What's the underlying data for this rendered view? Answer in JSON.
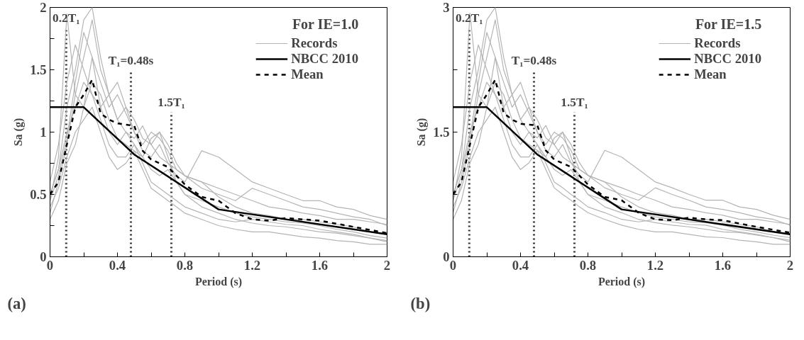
{
  "chart_data": [
    {
      "type": "line",
      "title": "For IE=1.0",
      "xlabel": "Period (s)",
      "ylabel": "Sa (g)",
      "legend": "top right",
      "grid": false,
      "xlim": [
        0,
        2
      ],
      "xticks": [
        0,
        {
          "value": 0.2,
          "label": null
        },
        0.4,
        {
          "value": 0.6,
          "label": null
        },
        0.8,
        {
          "value": 1.0,
          "label": null
        },
        1.2,
        {
          "value": 1.4,
          "label": null
        },
        1.6,
        {
          "value": 1.8,
          "label": null
        },
        2
      ],
      "ylim": [
        0,
        2
      ],
      "yticks": [
        0,
        {
          "value": 0.25,
          "label": null
        },
        0.5,
        {
          "value": 0.75,
          "label": null
        },
        1,
        {
          "value": 1.25,
          "label": null
        },
        1.5,
        {
          "value": 1.75,
          "label": null
        },
        2
      ],
      "x": [
        0,
        0.05,
        0.1,
        0.15,
        0.2,
        0.25,
        0.3,
        0.35,
        0.4,
        0.45,
        0.5,
        0.55,
        0.6,
        0.65,
        0.7,
        0.75,
        0.8,
        0.9,
        1.0,
        1.1,
        1.2,
        1.3,
        1.4,
        1.5,
        1.6,
        1.7,
        1.8,
        1.9,
        2.0
      ],
      "series": [
        {
          "name": "Records",
          "color": "#b4b4b4",
          "line_style": "solid",
          "values": [
            0.45,
            0.8,
            1.95,
            1.3,
            1.2,
            1.6,
            1.2,
            1.0,
            0.9,
            1.0,
            0.9,
            0.8,
            0.7,
            0.65,
            0.7,
            0.6,
            0.5,
            0.45,
            0.4,
            0.35,
            0.32,
            0.3,
            0.28,
            0.27,
            0.25,
            0.22,
            0.2,
            0.17,
            0.15
          ]
        },
        {
          "color": "#b4b4b4",
          "line_style": "solid",
          "values": [
            0.5,
            0.7,
            1.2,
            1.5,
            1.9,
            2.0,
            1.6,
            1.3,
            1.1,
            1.2,
            1.0,
            0.85,
            0.8,
            0.9,
            0.75,
            0.65,
            0.6,
            0.85,
            0.8,
            0.7,
            0.6,
            0.55,
            0.5,
            0.45,
            0.45,
            0.4,
            0.38,
            0.33,
            0.3
          ]
        },
        {
          "color": "#b4b4b4",
          "line_style": "solid",
          "values": [
            0.35,
            0.6,
            0.9,
            1.3,
            1.6,
            1.9,
            1.5,
            1.3,
            1.4,
            1.2,
            1.1,
            0.95,
            0.9,
            1.0,
            0.9,
            0.75,
            0.65,
            0.55,
            0.5,
            0.45,
            0.55,
            0.5,
            0.45,
            0.4,
            0.38,
            0.35,
            0.32,
            0.3,
            0.25
          ]
        },
        {
          "color": "#b4b4b4",
          "line_style": "solid",
          "values": [
            0.5,
            0.7,
            1.0,
            1.2,
            1.4,
            1.3,
            1.1,
            0.9,
            0.8,
            0.8,
            0.9,
            0.75,
            0.6,
            0.55,
            0.5,
            0.45,
            0.4,
            0.35,
            0.3,
            0.28,
            0.3,
            0.28,
            0.26,
            0.25,
            0.22,
            0.2,
            0.18,
            0.15,
            0.12
          ]
        },
        {
          "color": "#b4b4b4",
          "line_style": "solid",
          "values": [
            0.4,
            0.55,
            0.8,
            1.0,
            1.1,
            1.2,
            1.0,
            0.8,
            0.7,
            0.75,
            0.85,
            0.7,
            0.55,
            0.5,
            0.45,
            0.4,
            0.35,
            0.3,
            0.25,
            0.22,
            0.2,
            0.2,
            0.18,
            0.16,
            0.15,
            0.13,
            0.12,
            0.1,
            0.1
          ]
        },
        {
          "color": "#b4b4b4",
          "line_style": "solid",
          "values": [
            0.6,
            0.9,
            1.4,
            1.7,
            1.5,
            1.3,
            1.2,
            1.3,
            1.1,
            1.0,
            0.95,
            1.05,
            0.9,
            0.8,
            0.75,
            0.7,
            0.65,
            0.6,
            0.55,
            0.5,
            0.45,
            0.4,
            0.38,
            0.35,
            0.33,
            0.3,
            0.3,
            0.28,
            0.26
          ]
        },
        {
          "color": "#b4b4b4",
          "line_style": "solid",
          "values": [
            0.3,
            0.45,
            0.75,
            0.9,
            1.2,
            1.4,
            1.3,
            1.1,
            0.95,
            0.9,
            0.85,
            0.8,
            0.95,
            1.0,
            0.8,
            0.6,
            0.5,
            0.4,
            0.35,
            0.3,
            0.27,
            0.25,
            0.24,
            0.22,
            0.2,
            0.19,
            0.17,
            0.15,
            0.13
          ]
        },
        {
          "color": "#b4b4b4",
          "line_style": "solid",
          "values": [
            0.45,
            0.65,
            0.95,
            1.4,
            1.8,
            1.6,
            1.4,
            1.2,
            1.3,
            1.15,
            1.0,
            0.9,
            1.0,
            0.95,
            0.85,
            0.7,
            0.65,
            0.6,
            0.48,
            0.4,
            0.35,
            0.33,
            0.3,
            0.3,
            0.28,
            0.26,
            0.24,
            0.2,
            0.18
          ]
        },
        {
          "name": "NBCC 2010",
          "color": "#000000",
          "line_style": "solid",
          "x": [
            0,
            0.2,
            0.5,
            1.0,
            2.0
          ],
          "values": [
            1.2,
            1.2,
            0.82,
            0.38,
            0.18
          ]
        },
        {
          "name": "Mean",
          "color": "#000000",
          "line_style": "dashed",
          "x": [
            0,
            0.05,
            0.1,
            0.15,
            0.2,
            0.25,
            0.3,
            0.35,
            0.4,
            0.5,
            0.55,
            0.6,
            0.7,
            0.8,
            0.9,
            1.0,
            1.1,
            1.2,
            1.3,
            1.4,
            1.5,
            1.6,
            1.8,
            2.0
          ],
          "values": [
            0.5,
            0.6,
            0.9,
            1.2,
            1.3,
            1.42,
            1.15,
            1.1,
            1.07,
            1.05,
            0.85,
            0.78,
            0.72,
            0.58,
            0.48,
            0.45,
            0.35,
            0.3,
            0.29,
            0.31,
            0.3,
            0.29,
            0.24,
            0.19
          ]
        }
      ],
      "ref_lines": [
        {
          "axis": "x",
          "value": 0.096,
          "label": "0.2T₁",
          "color": "#333333",
          "line_style": "dotted"
        },
        {
          "axis": "x",
          "value": 0.48,
          "label": "T₁=0.48s",
          "color": "#333333",
          "line_style": "dotted"
        },
        {
          "axis": "x",
          "value": 0.72,
          "label": "1.5T₁",
          "color": "#333333",
          "line_style": "dotted"
        }
      ],
      "annotations": [
        "(a)"
      ]
    },
    {
      "type": "line",
      "title": "For IE=1.5",
      "xlabel": "Period (s)",
      "ylabel": "Sa (g)",
      "legend": "top right",
      "grid": false,
      "xlim": [
        0,
        2
      ],
      "xticks": [
        0,
        {
          "value": 0.2,
          "label": null
        },
        0.4,
        {
          "value": 0.6,
          "label": null
        },
        0.8,
        {
          "value": 1.0,
          "label": null
        },
        1.2,
        {
          "value": 1.4,
          "label": null
        },
        1.6,
        {
          "value": 1.8,
          "label": null
        },
        2
      ],
      "ylim": [
        0,
        3
      ],
      "yticks": [
        0,
        {
          "value": 0.75,
          "label": null
        },
        1.5,
        {
          "value": 2.25,
          "label": null
        },
        3
      ],
      "x": [
        0,
        0.05,
        0.1,
        0.15,
        0.2,
        0.25,
        0.3,
        0.35,
        0.4,
        0.45,
        0.5,
        0.55,
        0.6,
        0.65,
        0.7,
        0.75,
        0.8,
        0.9,
        1.0,
        1.1,
        1.2,
        1.3,
        1.4,
        1.5,
        1.6,
        1.7,
        1.8,
        1.9,
        2.0
      ],
      "series": [
        {
          "name": "Records",
          "color": "#b4b4b4",
          "line_style": "solid",
          "values": [
            0.68,
            1.2,
            2.93,
            1.95,
            1.8,
            2.4,
            1.8,
            1.5,
            1.35,
            1.5,
            1.35,
            1.2,
            1.05,
            0.98,
            1.05,
            0.9,
            0.75,
            0.68,
            0.6,
            0.53,
            0.48,
            0.45,
            0.42,
            0.41,
            0.38,
            0.33,
            0.3,
            0.26,
            0.23
          ]
        },
        {
          "color": "#b4b4b4",
          "line_style": "solid",
          "values": [
            0.75,
            1.05,
            1.8,
            2.25,
            2.85,
            3.0,
            2.4,
            1.95,
            1.65,
            1.8,
            1.5,
            1.28,
            1.2,
            1.35,
            1.13,
            0.98,
            0.9,
            1.28,
            1.2,
            1.05,
            0.9,
            0.83,
            0.75,
            0.68,
            0.68,
            0.6,
            0.57,
            0.5,
            0.45
          ]
        },
        {
          "color": "#b4b4b4",
          "line_style": "solid",
          "values": [
            0.53,
            0.9,
            1.35,
            1.95,
            2.4,
            2.85,
            2.25,
            1.95,
            2.1,
            1.8,
            1.65,
            1.43,
            1.35,
            1.5,
            1.35,
            1.13,
            0.98,
            0.83,
            0.75,
            0.68,
            0.83,
            0.75,
            0.68,
            0.6,
            0.57,
            0.53,
            0.48,
            0.45,
            0.38
          ]
        },
        {
          "color": "#b4b4b4",
          "line_style": "solid",
          "values": [
            0.75,
            1.05,
            1.5,
            1.8,
            2.1,
            1.95,
            1.65,
            1.35,
            1.2,
            1.2,
            1.35,
            1.13,
            0.9,
            0.83,
            0.75,
            0.68,
            0.6,
            0.53,
            0.45,
            0.42,
            0.45,
            0.42,
            0.39,
            0.38,
            0.33,
            0.3,
            0.27,
            0.23,
            0.18
          ]
        },
        {
          "color": "#b4b4b4",
          "line_style": "solid",
          "values": [
            0.6,
            0.83,
            1.2,
            1.5,
            1.65,
            1.8,
            1.5,
            1.2,
            1.05,
            1.13,
            1.28,
            1.05,
            0.83,
            0.75,
            0.68,
            0.6,
            0.53,
            0.45,
            0.38,
            0.33,
            0.3,
            0.3,
            0.27,
            0.24,
            0.23,
            0.2,
            0.18,
            0.15,
            0.15
          ]
        },
        {
          "color": "#b4b4b4",
          "line_style": "solid",
          "values": [
            0.9,
            1.35,
            2.1,
            2.55,
            2.25,
            1.95,
            1.8,
            1.95,
            1.65,
            1.5,
            1.43,
            1.58,
            1.35,
            1.2,
            1.13,
            1.05,
            0.98,
            0.9,
            0.83,
            0.75,
            0.68,
            0.6,
            0.57,
            0.53,
            0.5,
            0.45,
            0.45,
            0.42,
            0.39
          ]
        },
        {
          "color": "#b4b4b4",
          "line_style": "solid",
          "values": [
            0.45,
            0.68,
            1.13,
            1.35,
            1.8,
            2.1,
            1.95,
            1.65,
            1.43,
            1.35,
            1.28,
            1.2,
            1.43,
            1.5,
            1.2,
            0.9,
            0.75,
            0.6,
            0.53,
            0.45,
            0.41,
            0.38,
            0.36,
            0.33,
            0.3,
            0.29,
            0.26,
            0.23,
            0.2
          ]
        },
        {
          "color": "#b4b4b4",
          "line_style": "solid",
          "values": [
            0.68,
            0.98,
            1.43,
            2.1,
            2.7,
            2.4,
            2.1,
            1.8,
            1.95,
            1.73,
            1.5,
            1.35,
            1.5,
            1.43,
            1.28,
            1.05,
            0.98,
            0.9,
            0.72,
            0.6,
            0.53,
            0.5,
            0.45,
            0.45,
            0.42,
            0.39,
            0.36,
            0.3,
            0.27
          ]
        },
        {
          "name": "NBCC 2010",
          "color": "#000000",
          "line_style": "solid",
          "x": [
            0,
            0.2,
            0.5,
            1.0,
            2.0
          ],
          "values": [
            1.8,
            1.8,
            1.23,
            0.57,
            0.27
          ]
        },
        {
          "name": "Mean",
          "color": "#000000",
          "line_style": "dashed",
          "x": [
            0,
            0.05,
            0.1,
            0.15,
            0.2,
            0.25,
            0.3,
            0.35,
            0.4,
            0.5,
            0.55,
            0.6,
            0.7,
            0.8,
            0.9,
            1.0,
            1.1,
            1.2,
            1.3,
            1.4,
            1.5,
            1.6,
            1.8,
            2.0
          ],
          "values": [
            0.75,
            0.9,
            1.35,
            1.8,
            1.95,
            2.13,
            1.73,
            1.65,
            1.6,
            1.58,
            1.28,
            1.17,
            1.08,
            0.87,
            0.72,
            0.68,
            0.53,
            0.45,
            0.44,
            0.47,
            0.45,
            0.44,
            0.36,
            0.29
          ]
        }
      ],
      "ref_lines": [
        {
          "axis": "x",
          "value": 0.096,
          "label": "0.2T₁",
          "color": "#333333",
          "line_style": "dotted"
        },
        {
          "axis": "x",
          "value": 0.48,
          "label": "T₁=0.48s",
          "color": "#333333",
          "line_style": "dotted"
        },
        {
          "axis": "x",
          "value": 0.72,
          "label": "1.5T₁",
          "color": "#333333",
          "line_style": "dotted"
        }
      ],
      "annotations": [
        "(b)"
      ]
    }
  ]
}
